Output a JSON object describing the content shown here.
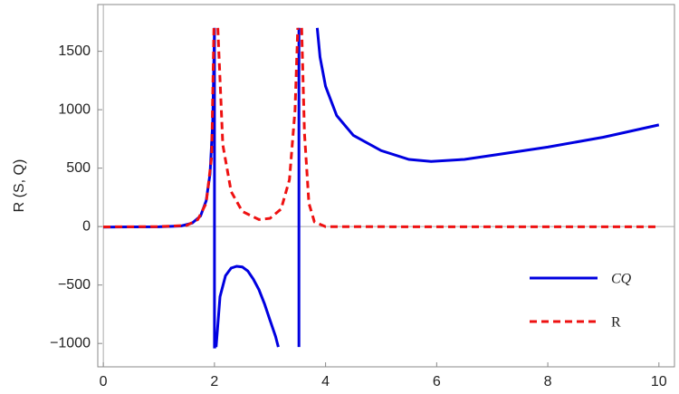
{
  "chart_data": {
    "type": "line",
    "y_label": "R (S, Q)",
    "xlim": [
      -0.1,
      10.28
    ],
    "ylim": [
      -1200,
      1900
    ],
    "xticks": [
      0,
      2,
      4,
      6,
      8,
      10
    ],
    "yticks": [
      {
        "value": -1000,
        "label": "−1000"
      },
      {
        "value": -500,
        "label": "−500"
      },
      0,
      500,
      1000,
      1500
    ],
    "legend": "bottom-right",
    "series": [
      {
        "name": "CQ",
        "color": "#0000e0",
        "dash": false,
        "x": [
          0,
          0.5,
          1,
          1.4,
          1.6,
          1.75,
          1.85,
          1.92,
          1.97,
          2.0,
          2.0,
          2.03,
          null,
          2.03,
          2.1,
          2.2,
          2.3,
          2.4,
          2.5,
          2.6,
          2.7,
          2.8,
          2.9,
          3.0,
          3.1,
          3.15,
          null,
          3.52,
          3.52,
          null,
          3.85,
          3.9,
          4.0,
          4.2,
          4.5,
          5,
          5.5,
          5.9,
          6.5,
          7,
          8,
          9,
          10
        ],
        "values": [
          -5,
          -3,
          -2,
          5,
          30,
          90,
          220,
          450,
          900,
          1700,
          -1030,
          -1030,
          null,
          -1030,
          -600,
          -420,
          -355,
          -340,
          -345,
          -380,
          -450,
          -540,
          -660,
          -800,
          -940,
          -1030,
          null,
          -1030,
          1700,
          null,
          1700,
          1450,
          1200,
          950,
          780,
          650,
          575,
          558,
          575,
          610,
          680,
          765,
          870
        ]
      },
      {
        "name": "R",
        "color": "#ee1111",
        "dash": true,
        "x": [
          0,
          1,
          1.5,
          1.7,
          1.85,
          1.95,
          1.99,
          null,
          2.06,
          2.15,
          2.3,
          2.5,
          2.8,
          3.0,
          3.2,
          3.35,
          3.45,
          3.5,
          null,
          3.57,
          3.62,
          3.7,
          3.8,
          4,
          6,
          10
        ],
        "values": [
          -3,
          0,
          10,
          60,
          200,
          600,
          1700,
          null,
          1700,
          700,
          300,
          130,
          60,
          70,
          150,
          400,
          1000,
          1700,
          null,
          1700,
          800,
          200,
          40,
          0,
          -2,
          -2
        ]
      }
    ]
  }
}
